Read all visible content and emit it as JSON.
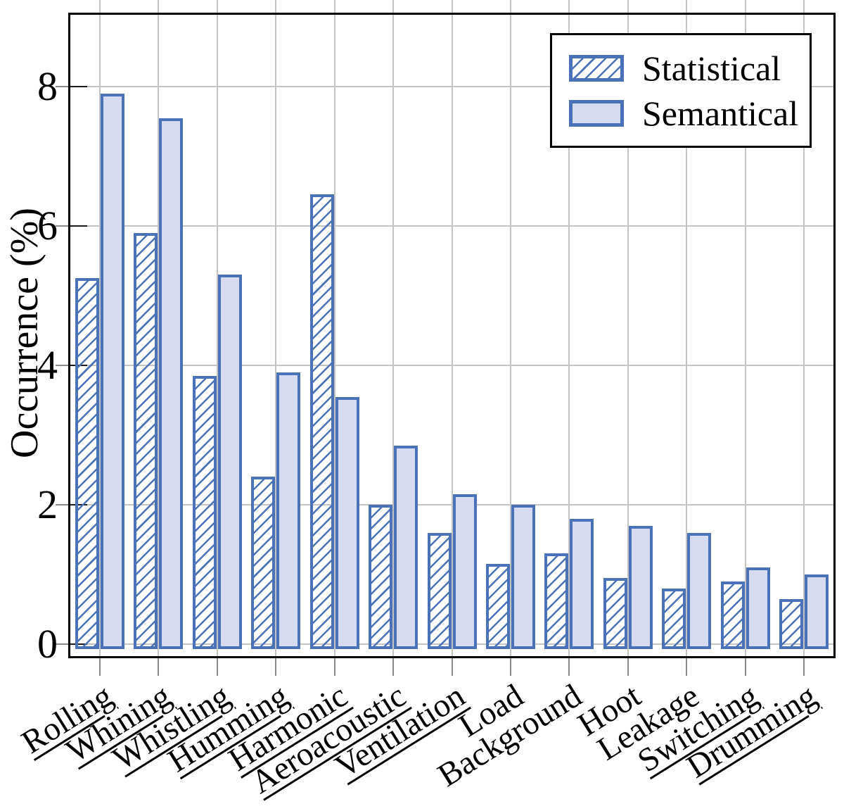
{
  "chart_data": {
    "type": "bar",
    "title": "",
    "xlabel": "",
    "ylabel": "Occurrence (%)",
    "categories": [
      "Rolling",
      "Whining",
      "Whistling",
      "Humming",
      "Harmonic",
      "Aeroacoustic",
      "Ventilation",
      "Load",
      "Background",
      "Hoot",
      "Leakage",
      "Switching",
      "Drumming"
    ],
    "category_underlined": [
      true,
      true,
      true,
      true,
      true,
      true,
      true,
      false,
      false,
      false,
      false,
      true,
      true
    ],
    "series": [
      {
        "name": "Statistical",
        "pattern": "hatched",
        "values": [
          5.25,
          5.9,
          3.85,
          2.4,
          6.45,
          2.0,
          1.6,
          1.15,
          1.3,
          0.95,
          0.8,
          0.9,
          0.65
        ]
      },
      {
        "name": "Semantical",
        "pattern": "solid",
        "values": [
          7.9,
          7.55,
          5.3,
          3.9,
          3.55,
          2.85,
          2.15,
          2.0,
          1.8,
          1.7,
          1.6,
          1.1,
          1.0
        ]
      }
    ],
    "yticks": [
      0,
      2,
      4,
      6,
      8
    ],
    "ylim": [
      -0.2,
      9.05
    ],
    "grid": true,
    "legend_position": "top-right",
    "colors": {
      "bar_border": "#4a72b8",
      "hatch_line": "#4a72b8",
      "semantical_fill": "#d7dbf1",
      "gridline": "#c3c3c3",
      "axis": "#000000",
      "legend_border": "#000000"
    }
  }
}
